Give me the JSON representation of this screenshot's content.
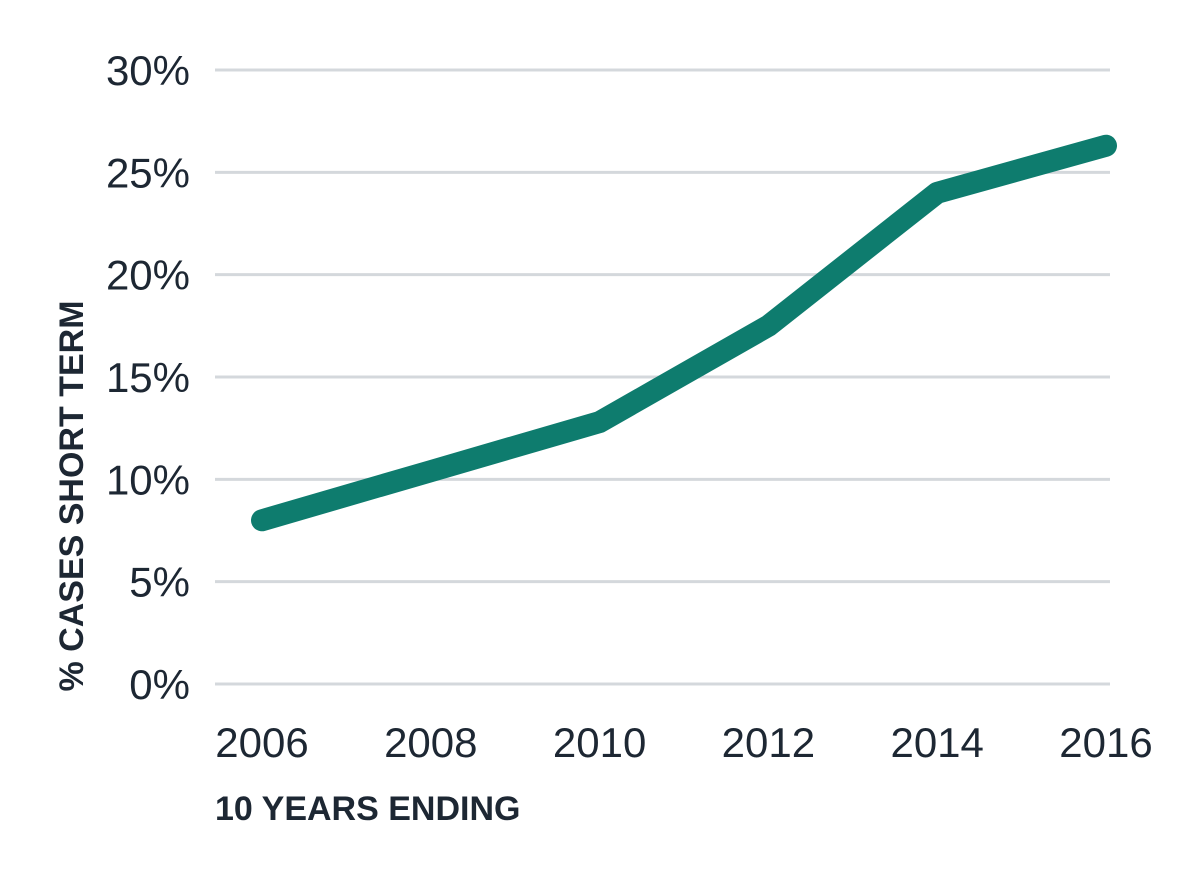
{
  "chart_data": {
    "type": "line",
    "title": "",
    "xlabel": "10 YEARS ENDING",
    "ylabel": "% CASES SHORT TERM",
    "x": [
      2006,
      2008,
      2010,
      2012,
      2014,
      2016
    ],
    "xticks": [
      "2006",
      "2008",
      "2010",
      "2012",
      "2014",
      "2016"
    ],
    "yticks": [
      {
        "value": 0,
        "label": "0%"
      },
      {
        "value": 5,
        "label": "5%"
      },
      {
        "value": 10,
        "label": "10%"
      },
      {
        "value": 15,
        "label": "15%"
      },
      {
        "value": 20,
        "label": "20%"
      },
      {
        "value": 25,
        "label": "25%"
      },
      {
        "value": 30,
        "label": "30%"
      }
    ],
    "ylim": [
      0,
      30
    ],
    "xlim": [
      2006,
      2016
    ],
    "grid": true,
    "series": [
      {
        "color": "#0e7c6e",
        "points": [
          {
            "x": 2006,
            "y": 8.0
          },
          {
            "x": 2008,
            "y": 10.4
          },
          {
            "x": 2010,
            "y": 12.8
          },
          {
            "x": 2012,
            "y": 17.5
          },
          {
            "x": 2014,
            "y": 24.0
          },
          {
            "x": 2016,
            "y": 26.3
          }
        ]
      }
    ]
  }
}
